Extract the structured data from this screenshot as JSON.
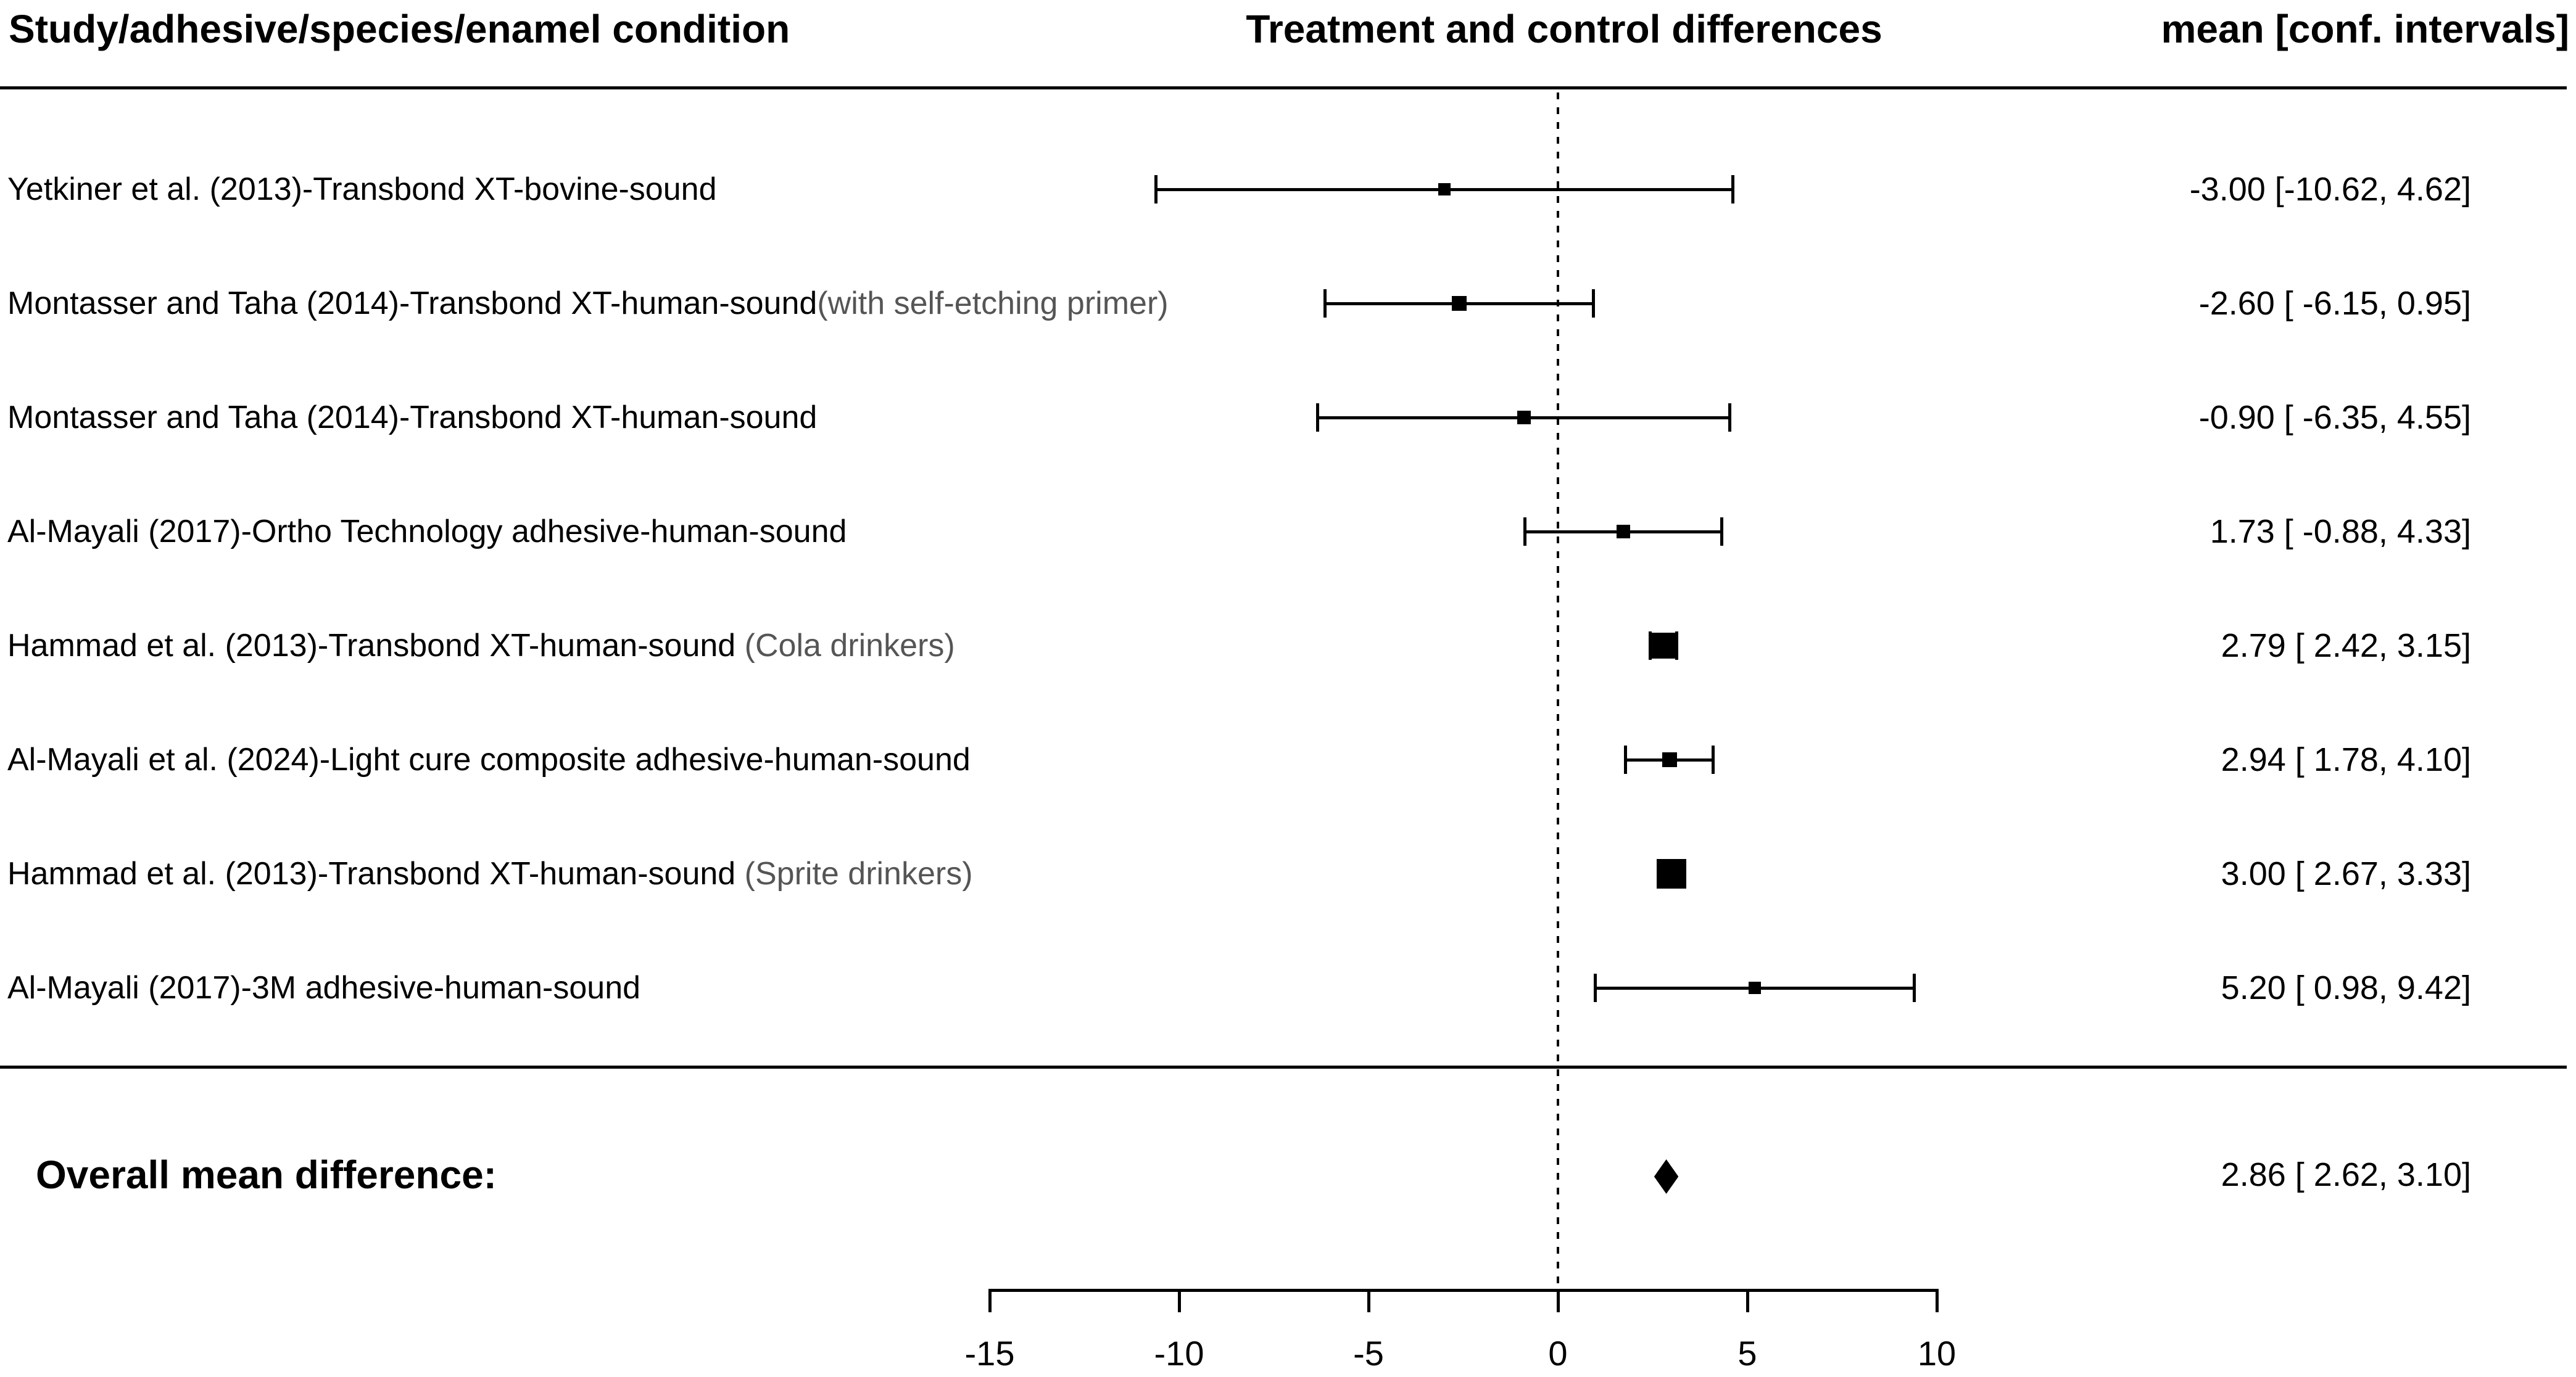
{
  "header": {
    "left_col": "Study/adhesive/species/enamel condition",
    "mid_col": "Treatment and control differences",
    "right_col": "mean [conf. intervals]"
  },
  "colors": {
    "text": "#000000",
    "sublabel": "#555555",
    "background": "#ffffff",
    "line": "#000000"
  },
  "chart_data": {
    "type": "scatter",
    "variant": "forest-plot",
    "title": "Treatment and control differences",
    "x_axis": {
      "ticks": [
        -15,
        -10,
        -5,
        0,
        5,
        10
      ],
      "tick_labels": [
        "-15",
        "-10",
        "-5",
        "0",
        "5",
        "10"
      ],
      "range": [
        -15,
        10
      ],
      "zero_reference_line": 0,
      "grid": false
    },
    "studies": [
      {
        "label": "Yetkiner et al. (2013)-Transbond XT-bovine-sound",
        "sublabel": null,
        "mean": -3.0,
        "ci_low": -10.62,
        "ci_high": 4.62,
        "value_text": "-3.00 [-10.62, 4.62]",
        "marker_size": 20
      },
      {
        "label": "Montasser and Taha (2014)-Transbond XT-human-sound",
        "sublabel": "(with self-etching primer)",
        "mean": -2.6,
        "ci_low": -6.15,
        "ci_high": 0.95,
        "value_text": "-2.60 [ -6.15, 0.95]",
        "marker_size": 24
      },
      {
        "label": "Montasser and Taha (2014)-Transbond XT-human-sound",
        "sublabel": null,
        "mean": -0.9,
        "ci_low": -6.35,
        "ci_high": 4.55,
        "value_text": "-0.90 [ -6.35, 4.55]",
        "marker_size": 22
      },
      {
        "label": "Al-Mayali (2017)-Ortho Technology adhesive-human-sound",
        "sublabel": null,
        "mean": 1.73,
        "ci_low": -0.88,
        "ci_high": 4.33,
        "value_text": "1.73 [ -0.88, 4.33]",
        "marker_size": 22
      },
      {
        "label": "Hammad et al. (2013)-Transbond XT-human-sound",
        "sublabel": " (Cola drinkers)",
        "mean": 2.79,
        "ci_low": 2.42,
        "ci_high": 3.15,
        "value_text": "2.79 [ 2.42, 3.15]",
        "marker_size": 42
      },
      {
        "label": "Al-Mayali et al. (2024)-Light cure composite adhesive-human-sound",
        "sublabel": null,
        "mean": 2.94,
        "ci_low": 1.78,
        "ci_high": 4.1,
        "value_text": "2.94 [ 1.78, 4.10]",
        "marker_size": 24
      },
      {
        "label": "Hammad et al. (2013)-Transbond XT-human-sound",
        "sublabel": " (Sprite drinkers)",
        "mean": 3.0,
        "ci_low": 2.67,
        "ci_high": 3.33,
        "value_text": "3.00 [ 2.67, 3.33]",
        "marker_size": 48
      },
      {
        "label": "Al-Mayali (2017)-3M adhesive-human-sound",
        "sublabel": null,
        "mean": 5.2,
        "ci_low": 0.98,
        "ci_high": 9.42,
        "value_text": "5.20 [ 0.98, 9.42]",
        "marker_size": 20
      }
    ],
    "overall": {
      "label": "Overall mean difference:",
      "mean": 2.86,
      "ci_low": 2.62,
      "ci_high": 3.1,
      "value_text": "2.86 [ 2.62, 3.10]"
    }
  }
}
